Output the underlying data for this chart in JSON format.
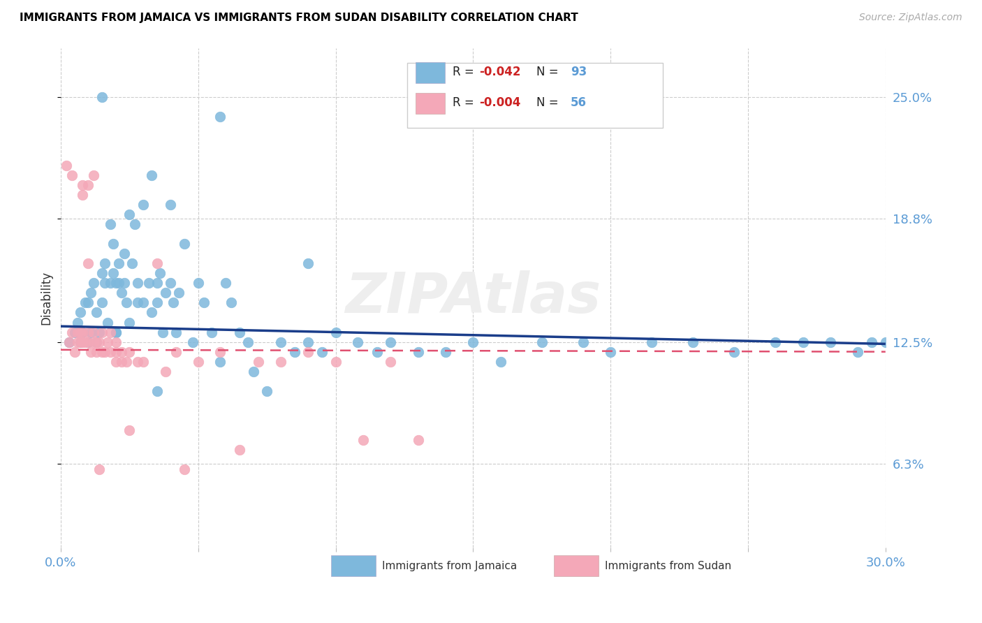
{
  "title": "IMMIGRANTS FROM JAMAICA VS IMMIGRANTS FROM SUDAN DISABILITY CORRELATION CHART",
  "source": "Source: ZipAtlas.com",
  "ylabel": "Disability",
  "ytick_labels": [
    "6.3%",
    "12.5%",
    "18.8%",
    "25.0%"
  ],
  "ytick_values": [
    0.063,
    0.125,
    0.188,
    0.25
  ],
  "xlim": [
    0.0,
    0.3
  ],
  "ylim": [
    0.02,
    0.275
  ],
  "color_jamaica": "#7eb8dc",
  "color_sudan": "#f4a8b8",
  "trendline_jamaica_color": "#1a3d8a",
  "trendline_sudan_color": "#e05070",
  "watermark": "ZIPAtlas",
  "jamaica_x": [
    0.003,
    0.005,
    0.006,
    0.007,
    0.007,
    0.008,
    0.009,
    0.01,
    0.01,
    0.011,
    0.011,
    0.012,
    0.013,
    0.013,
    0.014,
    0.015,
    0.015,
    0.016,
    0.016,
    0.017,
    0.018,
    0.018,
    0.019,
    0.019,
    0.02,
    0.02,
    0.021,
    0.021,
    0.022,
    0.023,
    0.023,
    0.024,
    0.025,
    0.026,
    0.027,
    0.028,
    0.028,
    0.03,
    0.032,
    0.033,
    0.035,
    0.035,
    0.036,
    0.037,
    0.038,
    0.04,
    0.041,
    0.042,
    0.043,
    0.045,
    0.048,
    0.05,
    0.052,
    0.055,
    0.058,
    0.06,
    0.062,
    0.065,
    0.068,
    0.07,
    0.075,
    0.08,
    0.085,
    0.09,
    0.095,
    0.1,
    0.108,
    0.115,
    0.12,
    0.13,
    0.14,
    0.15,
    0.16,
    0.175,
    0.19,
    0.2,
    0.215,
    0.23,
    0.245,
    0.26,
    0.27,
    0.28,
    0.29,
    0.295,
    0.3,
    0.058,
    0.033,
    0.09,
    0.04,
    0.025,
    0.03,
    0.035,
    0.02,
    0.015
  ],
  "jamaica_y": [
    0.125,
    0.13,
    0.135,
    0.125,
    0.14,
    0.13,
    0.145,
    0.125,
    0.145,
    0.13,
    0.15,
    0.155,
    0.125,
    0.14,
    0.13,
    0.16,
    0.145,
    0.155,
    0.165,
    0.135,
    0.185,
    0.155,
    0.16,
    0.175,
    0.155,
    0.13,
    0.155,
    0.165,
    0.15,
    0.155,
    0.17,
    0.145,
    0.19,
    0.165,
    0.185,
    0.145,
    0.155,
    0.145,
    0.155,
    0.14,
    0.155,
    0.145,
    0.16,
    0.13,
    0.15,
    0.155,
    0.145,
    0.13,
    0.15,
    0.175,
    0.125,
    0.155,
    0.145,
    0.13,
    0.115,
    0.155,
    0.145,
    0.13,
    0.125,
    0.11,
    0.1,
    0.125,
    0.12,
    0.125,
    0.12,
    0.13,
    0.125,
    0.12,
    0.125,
    0.12,
    0.12,
    0.125,
    0.115,
    0.125,
    0.125,
    0.12,
    0.125,
    0.125,
    0.12,
    0.125,
    0.125,
    0.125,
    0.12,
    0.125,
    0.125,
    0.24,
    0.21,
    0.165,
    0.195,
    0.135,
    0.195,
    0.1,
    0.13,
    0.25
  ],
  "sudan_x": [
    0.002,
    0.003,
    0.004,
    0.005,
    0.006,
    0.006,
    0.007,
    0.007,
    0.008,
    0.008,
    0.008,
    0.009,
    0.01,
    0.01,
    0.01,
    0.011,
    0.012,
    0.012,
    0.012,
    0.013,
    0.013,
    0.014,
    0.015,
    0.015,
    0.016,
    0.017,
    0.018,
    0.018,
    0.02,
    0.02,
    0.02,
    0.022,
    0.022,
    0.024,
    0.025,
    0.025,
    0.028,
    0.03,
    0.035,
    0.038,
    0.042,
    0.045,
    0.05,
    0.058,
    0.065,
    0.072,
    0.08,
    0.09,
    0.1,
    0.11,
    0.12,
    0.13,
    0.004,
    0.008,
    0.01,
    0.014
  ],
  "sudan_y": [
    0.215,
    0.125,
    0.13,
    0.12,
    0.13,
    0.125,
    0.125,
    0.13,
    0.125,
    0.13,
    0.2,
    0.125,
    0.125,
    0.13,
    0.205,
    0.12,
    0.125,
    0.13,
    0.21,
    0.12,
    0.125,
    0.125,
    0.12,
    0.13,
    0.12,
    0.125,
    0.13,
    0.12,
    0.115,
    0.12,
    0.125,
    0.115,
    0.12,
    0.115,
    0.08,
    0.12,
    0.115,
    0.115,
    0.165,
    0.11,
    0.12,
    0.06,
    0.115,
    0.12,
    0.07,
    0.115,
    0.115,
    0.12,
    0.115,
    0.075,
    0.115,
    0.075,
    0.21,
    0.205,
    0.165,
    0.06
  ]
}
